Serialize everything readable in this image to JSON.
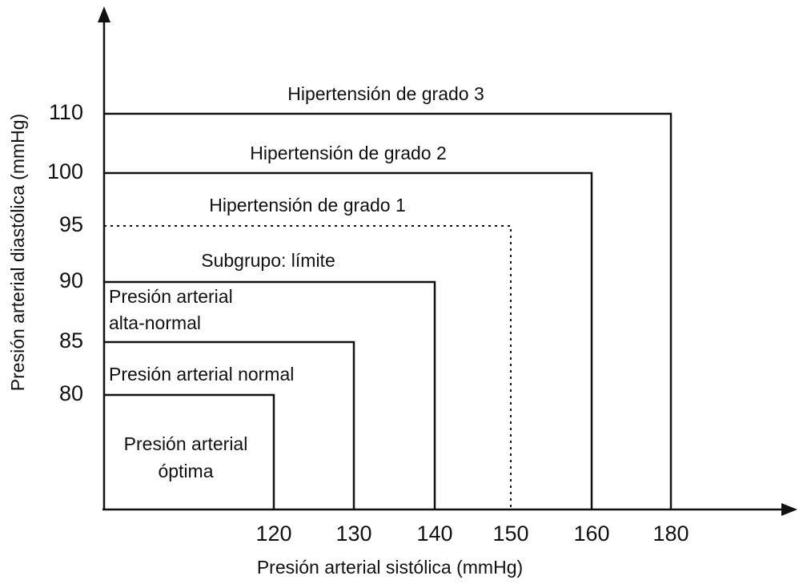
{
  "y_axis": {
    "title": "Presión arterial diastólica (mmHg)",
    "ticks": [
      "110",
      "100",
      "95",
      "90",
      "85",
      "80"
    ]
  },
  "x_axis": {
    "title": "Presión arterial sistólica (mmHg)",
    "ticks": [
      "120",
      "130",
      "140",
      "150",
      "160",
      "180"
    ]
  },
  "regions": [
    {
      "lines": [
        "Presión arterial",
        "óptima"
      ]
    },
    {
      "lines": [
        "Presión arterial normal"
      ]
    },
    {
      "lines": [
        "Presión arterial",
        "alta-normal"
      ]
    },
    {
      "lines": [
        "Subgrupo: límite"
      ]
    },
    {
      "lines": [
        "Hipertensión de grado 1"
      ]
    },
    {
      "lines": [
        "Hipertensión de grado 2"
      ]
    },
    {
      "lines": [
        "Hipertensión de grado 3"
      ]
    }
  ]
}
